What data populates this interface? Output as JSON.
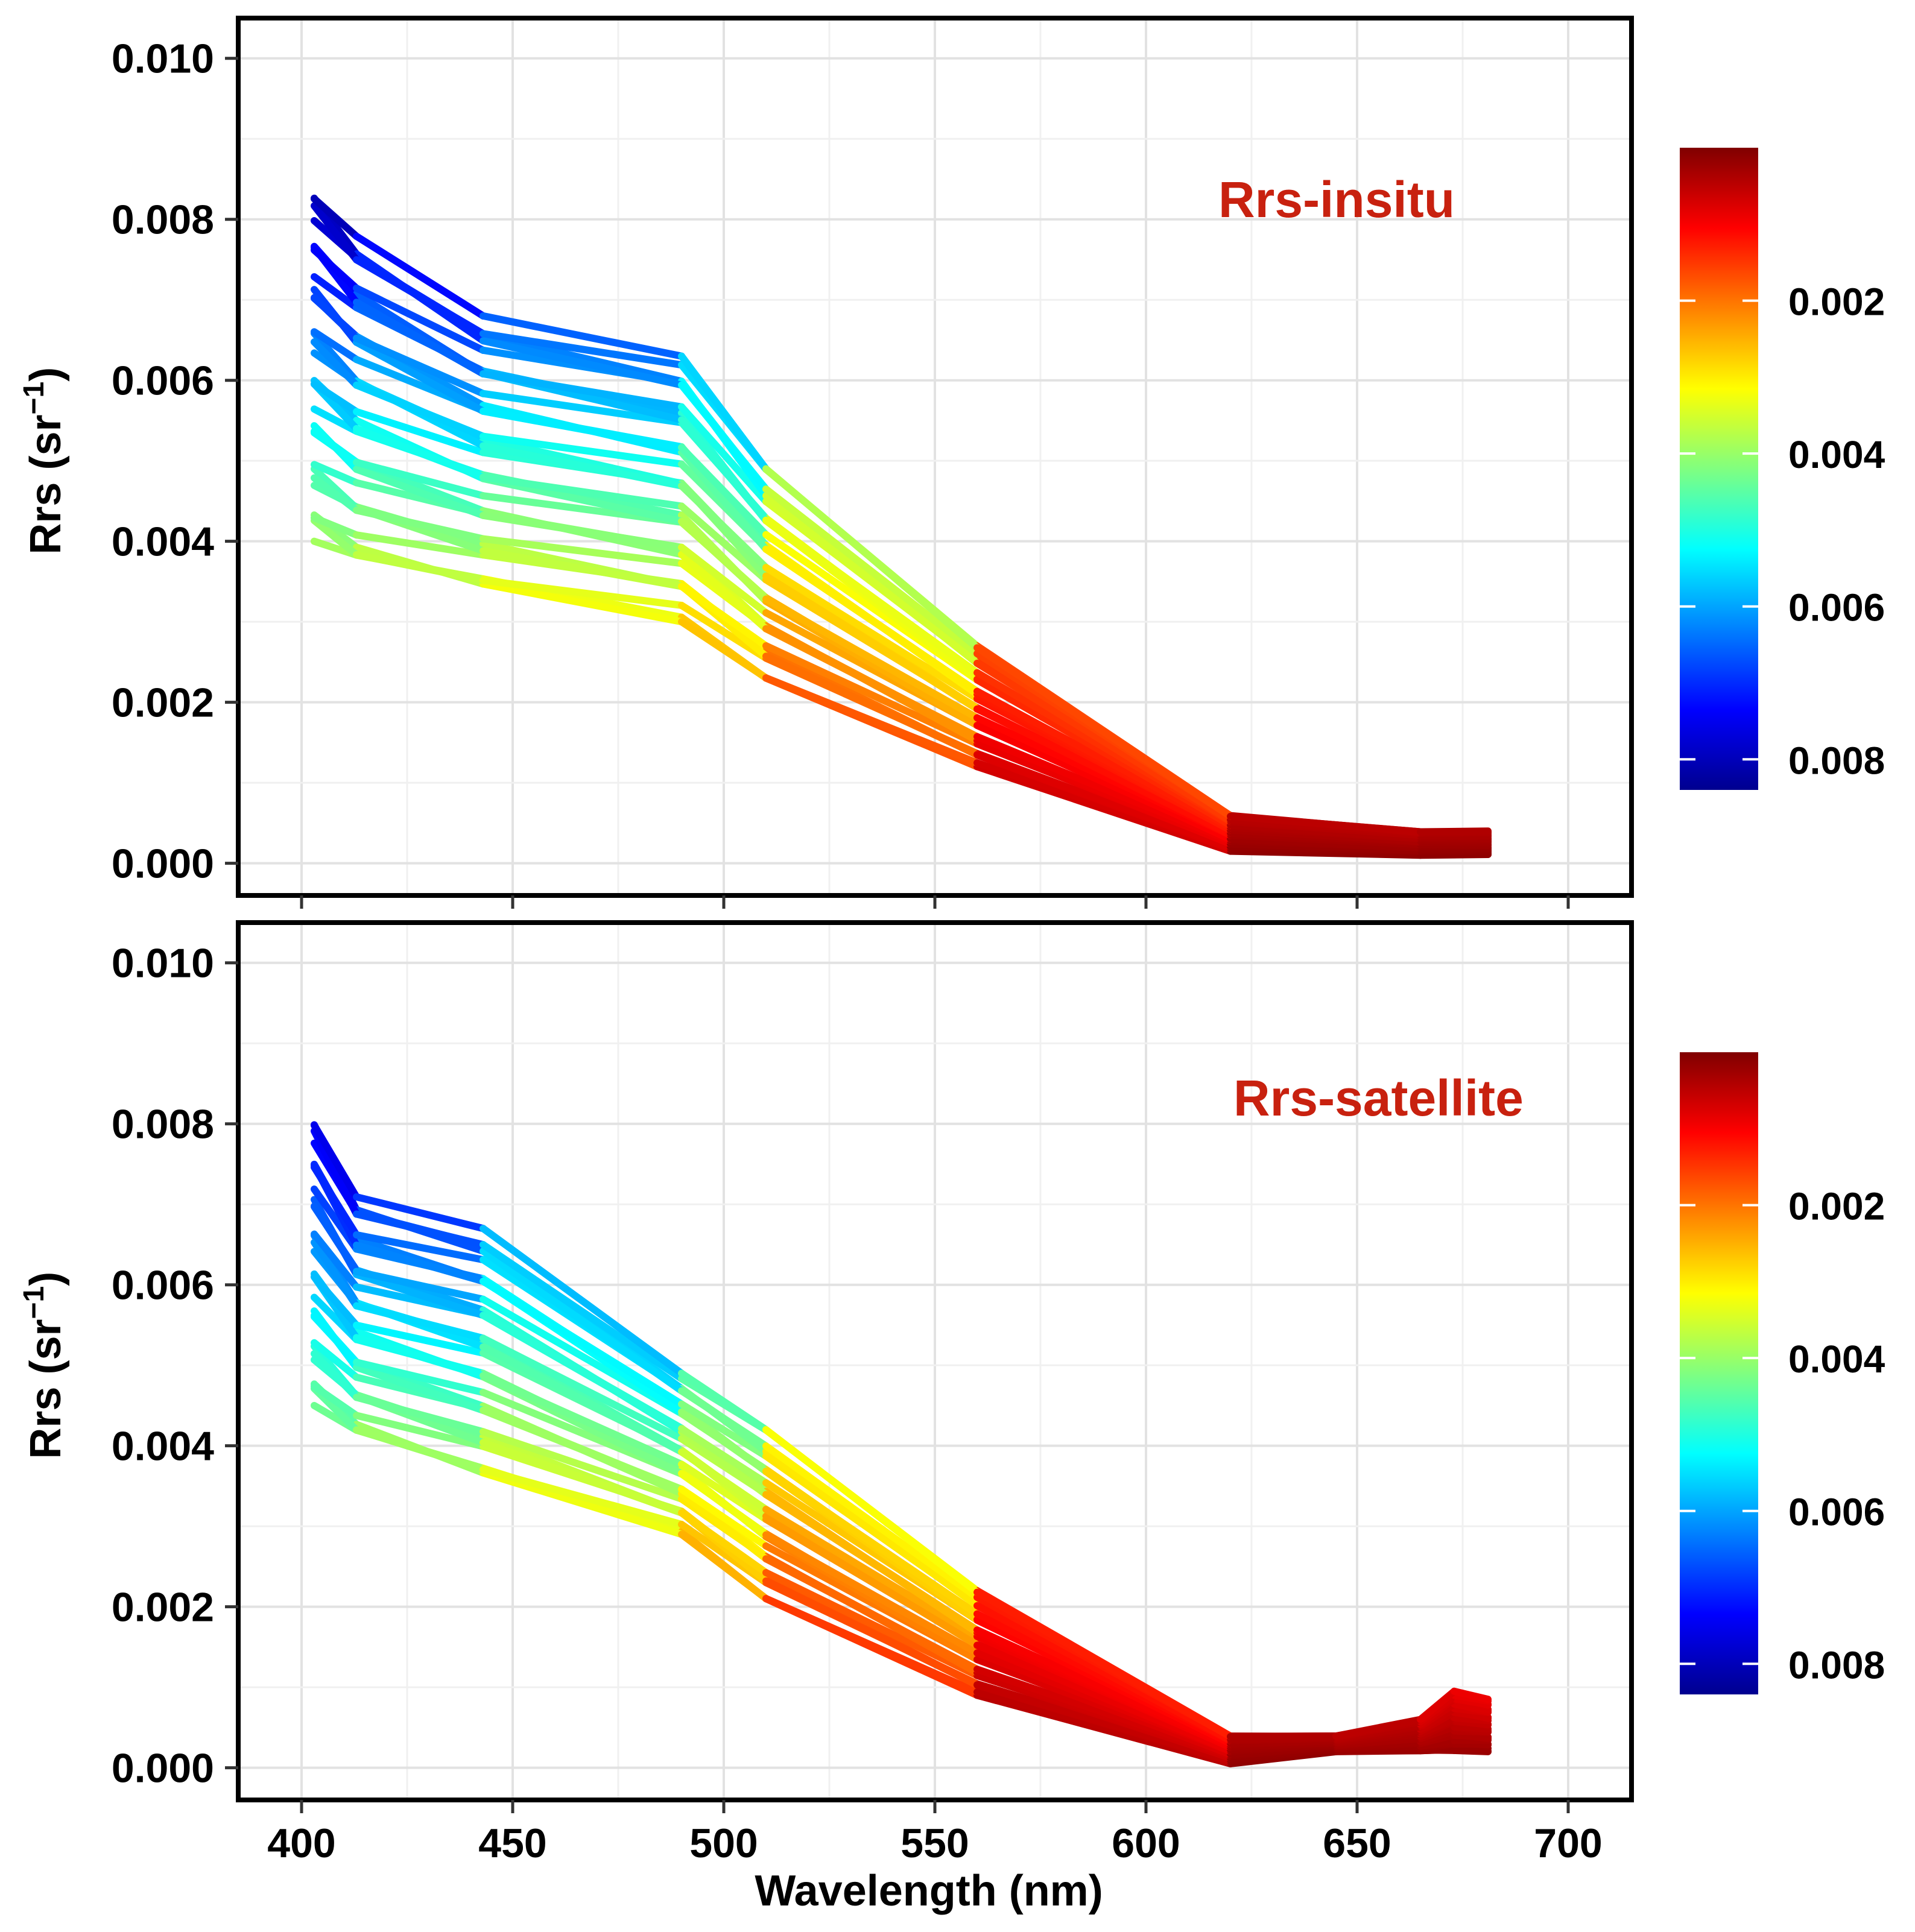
{
  "figure": {
    "xlabel": "Wavelength (nm)",
    "ylabel_main": "Rrs",
    "ylabel_unit_base": "sr",
    "ylabel_unit_exp": "−1",
    "colormap": [
      "#00008f",
      "#0000ff",
      "#0080ff",
      "#00ffff",
      "#80ff80",
      "#ffff00",
      "#ff8000",
      "#ff0000",
      "#800000"
    ]
  },
  "chart_data": [
    {
      "type": "line",
      "panel_label": "Rrs-insitu",
      "xlim": [
        385,
        715
      ],
      "ylim": [
        -0.0004,
        0.0105
      ],
      "x_ticks": [
        400,
        450,
        500,
        550,
        600,
        650,
        700
      ],
      "x_tick_labels": [
        "400",
        "450",
        "500",
        "550",
        "600",
        "650",
        "700"
      ],
      "y_ticks": [
        0.0,
        0.002,
        0.004,
        0.006,
        0.008,
        0.01
      ],
      "y_tick_labels": [
        "0.000",
        "0.002",
        "0.004",
        "0.006",
        "0.008",
        "0.010"
      ],
      "x": [
        403,
        413,
        443,
        490,
        510,
        560,
        620,
        665,
        681
      ],
      "series_count": 30,
      "series_min": [
        0.004,
        0.0037,
        0.0034,
        0.003,
        0.0023,
        0.0012,
        0.00015,
        0.0001,
        0.0001
      ],
      "series_max": [
        0.0084,
        0.0078,
        0.0068,
        0.0063,
        0.0049,
        0.0027,
        0.0006,
        0.0004,
        0.0004
      ],
      "colorbar": {
        "min": 0.0,
        "max": 0.0084,
        "reversed": true,
        "ticks": [
          0.002,
          0.004,
          0.006,
          0.008
        ],
        "tick_labels": [
          "0.002",
          "0.004",
          "0.006",
          "0.008"
        ]
      }
    },
    {
      "type": "line",
      "panel_label": "Rrs-satellite",
      "xlim": [
        385,
        715
      ],
      "ylim": [
        -0.0004,
        0.0105
      ],
      "x_ticks": [
        400,
        450,
        500,
        550,
        600,
        650,
        700
      ],
      "x_tick_labels": [
        "400",
        "450",
        "500",
        "550",
        "600",
        "650",
        "700"
      ],
      "y_ticks": [
        0.0,
        0.002,
        0.004,
        0.006,
        0.008,
        0.01
      ],
      "y_tick_labels": [
        "0.000",
        "0.002",
        "0.004",
        "0.006",
        "0.008",
        "0.010"
      ],
      "x": [
        403,
        413,
        443,
        490,
        510,
        560,
        620,
        645,
        665,
        673,
        681
      ],
      "series_count": 30,
      "series_min": [
        0.0045,
        0.0041,
        0.0036,
        0.0029,
        0.0021,
        0.0009,
        5e-05,
        0.0002,
        0.0002,
        0.0002,
        0.0002
      ],
      "series_max": [
        0.0081,
        0.0071,
        0.0067,
        0.0049,
        0.0042,
        0.0022,
        0.0004,
        0.0004,
        0.0006,
        0.00095,
        0.00085
      ],
      "colorbar": {
        "min": 0.0,
        "max": 0.0084,
        "reversed": true,
        "ticks": [
          0.002,
          0.004,
          0.006,
          0.008
        ],
        "tick_labels": [
          "0.002",
          "0.004",
          "0.006",
          "0.008"
        ]
      }
    }
  ]
}
